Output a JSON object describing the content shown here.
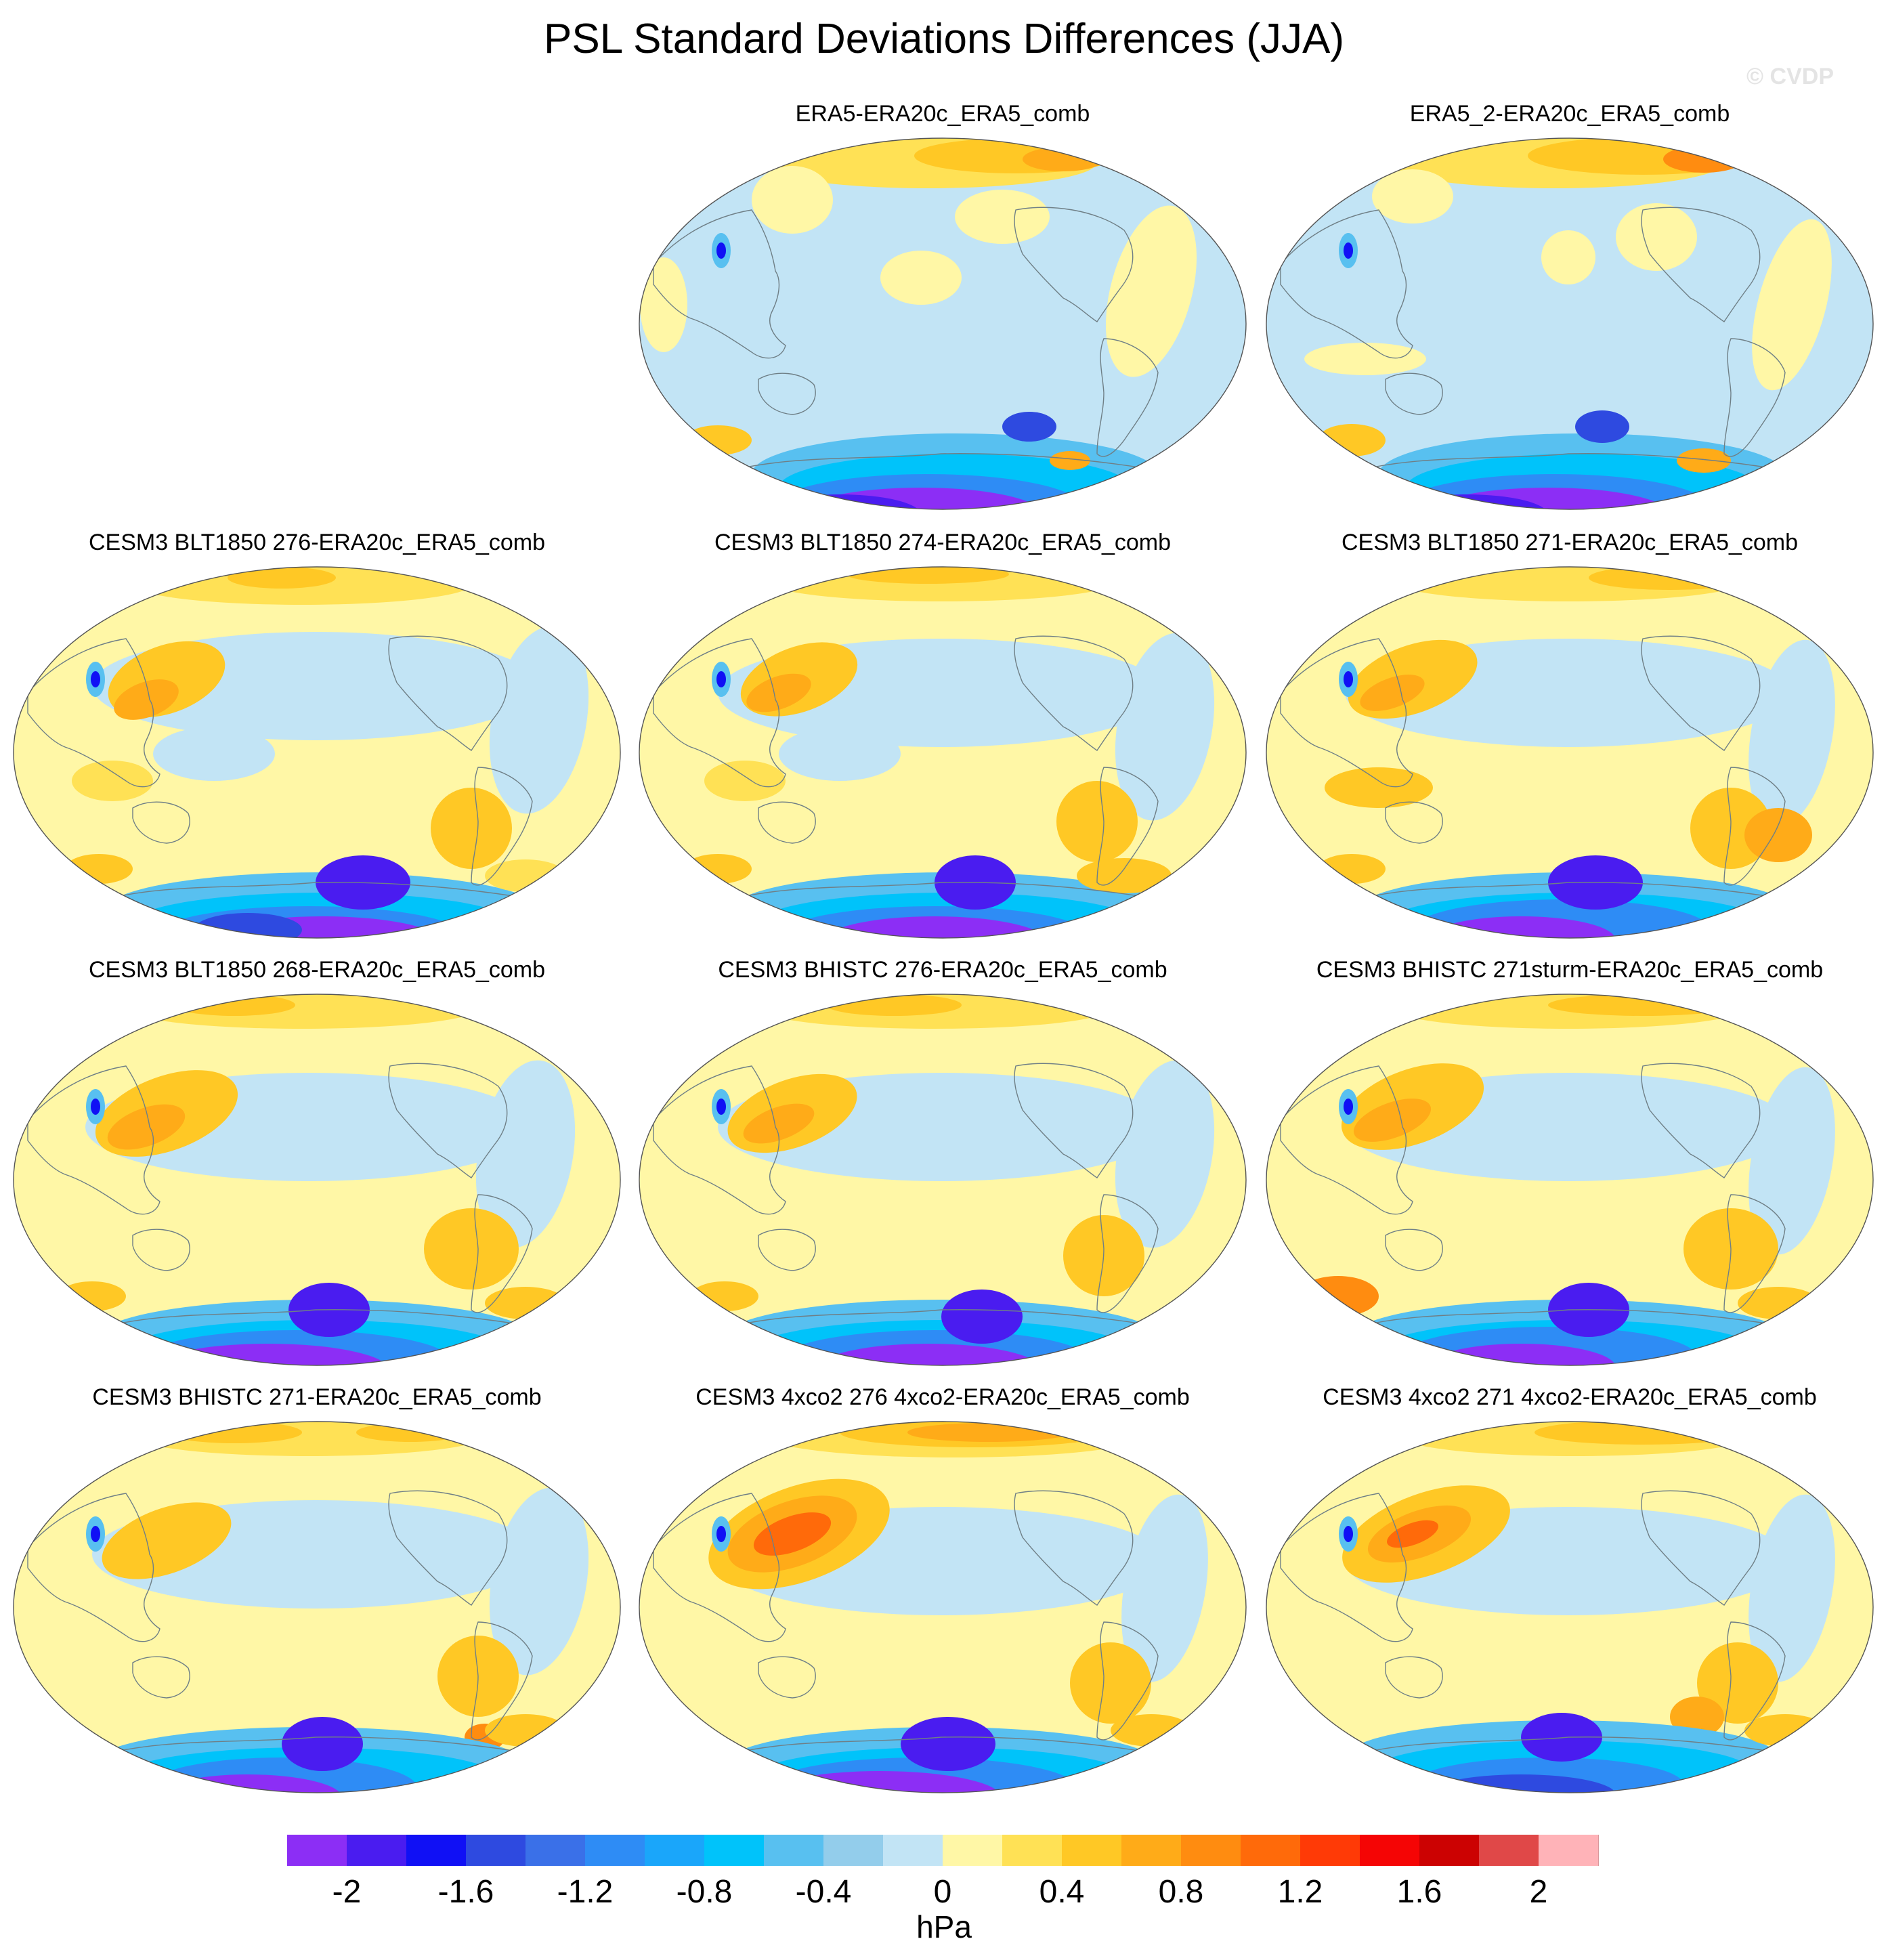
{
  "figure": {
    "title": "PSL Standard Deviations Differences (JJA)",
    "watermark": "© CVDP"
  },
  "panels": [
    {
      "title": "ERA5-ERA20c_ERA5_comb",
      "variant": 0
    },
    {
      "title": "ERA5_2-ERA20c_ERA5_comb",
      "variant": 1
    },
    {
      "title": "CESM3 BLT1850 276-ERA20c_ERA5_comb",
      "variant": 2
    },
    {
      "title": "CESM3 BLT1850 274-ERA20c_ERA5_comb",
      "variant": 3
    },
    {
      "title": "CESM3 BLT1850 271-ERA20c_ERA5_comb",
      "variant": 4
    },
    {
      "title": "CESM3 BLT1850 268-ERA20c_ERA5_comb",
      "variant": 5
    },
    {
      "title": "CESM3 BHISTC 276-ERA20c_ERA5_comb",
      "variant": 6
    },
    {
      "title": "CESM3 BHISTC 271sturm-ERA20c_ERA5_comb",
      "variant": 7
    },
    {
      "title": "CESM3 BHISTC 271-ERA20c_ERA5_comb",
      "variant": 8
    },
    {
      "title": "CESM3 4xco2 276 4xco2-ERA20c_ERA5_comb",
      "variant": 9
    },
    {
      "title": "CESM3 4xco2 271 4xco2-ERA20c_ERA5_comb",
      "variant": 10
    }
  ],
  "colorbar": {
    "units": "hPa",
    "levels": [
      -2.2,
      -2.0,
      -1.8,
      -1.6,
      -1.4,
      -1.2,
      -1.0,
      -0.8,
      -0.6,
      -0.4,
      -0.2,
      0,
      0.2,
      0.4,
      0.6,
      0.8,
      1.0,
      1.2,
      1.4,
      1.6,
      1.8,
      2.0,
      2.2
    ],
    "colors": [
      "#8c2ef5",
      "#4a1cf0",
      "#1010f5",
      "#2e4ae0",
      "#3a70e8",
      "#2e8cf5",
      "#1aa6fa",
      "#00c3fa",
      "#58c0f0",
      "#93cdeb",
      "#c2e4f5",
      "#fff7a6",
      "#ffe155",
      "#ffc825",
      "#ffab18",
      "#ff8c10",
      "#ff6a0a",
      "#ff3a06",
      "#f50505",
      "#cc0202",
      "#e04848",
      "#ffb3b8"
    ],
    "tick_labels": [
      "-2",
      "-1.6",
      "-1.2",
      "-0.8",
      "-0.4",
      "0",
      "0.4",
      "0.8",
      "1.2",
      "1.6",
      "2"
    ],
    "tick_values": [
      -2,
      -1.6,
      -1.2,
      -0.8,
      -0.4,
      0,
      0.4,
      0.8,
      1.2,
      1.6,
      2
    ]
  }
}
